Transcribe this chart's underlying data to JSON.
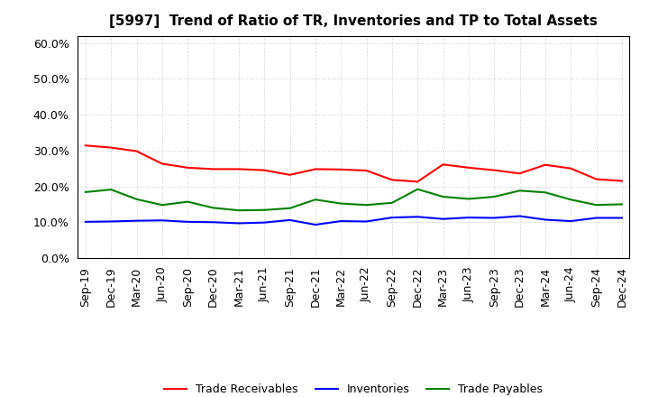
{
  "title": "[5997]  Trend of Ratio of TR, Inventories and TP to Total Assets",
  "labels": [
    "Sep-19",
    "Dec-19",
    "Mar-20",
    "Jun-20",
    "Sep-20",
    "Dec-20",
    "Mar-21",
    "Jun-21",
    "Sep-21",
    "Dec-21",
    "Mar-22",
    "Jun-22",
    "Sep-22",
    "Dec-22",
    "Mar-23",
    "Jun-23",
    "Sep-23",
    "Dec-23",
    "Mar-24",
    "Jun-24",
    "Sep-24",
    "Dec-24"
  ],
  "trade_receivables": [
    0.314,
    0.308,
    0.298,
    0.263,
    0.252,
    0.248,
    0.248,
    0.245,
    0.232,
    0.248,
    0.247,
    0.244,
    0.218,
    0.213,
    0.261,
    0.252,
    0.245,
    0.236,
    0.26,
    0.25,
    0.22,
    0.215
  ],
  "inventories": [
    0.101,
    0.102,
    0.104,
    0.105,
    0.101,
    0.1,
    0.097,
    0.099,
    0.106,
    0.093,
    0.103,
    0.102,
    0.113,
    0.115,
    0.109,
    0.113,
    0.112,
    0.117,
    0.107,
    0.103,
    0.112,
    0.112
  ],
  "trade_payables": [
    0.184,
    0.191,
    0.164,
    0.148,
    0.157,
    0.14,
    0.133,
    0.134,
    0.139,
    0.163,
    0.152,
    0.148,
    0.154,
    0.192,
    0.171,
    0.165,
    0.171,
    0.188,
    0.183,
    0.163,
    0.148,
    0.15
  ],
  "ylim": [
    0.0,
    0.62
  ],
  "yticks": [
    0.0,
    0.1,
    0.2,
    0.3,
    0.4,
    0.5,
    0.6
  ],
  "colors": {
    "trade_receivables": "#FF0000",
    "inventories": "#0000FF",
    "trade_payables": "#008000"
  },
  "legend_labels": [
    "Trade Receivables",
    "Inventories",
    "Trade Payables"
  ],
  "background_color": "#FFFFFF",
  "grid_color": "#BBBBBB",
  "title_fontsize": 11,
  "tick_fontsize": 9,
  "legend_fontsize": 9
}
